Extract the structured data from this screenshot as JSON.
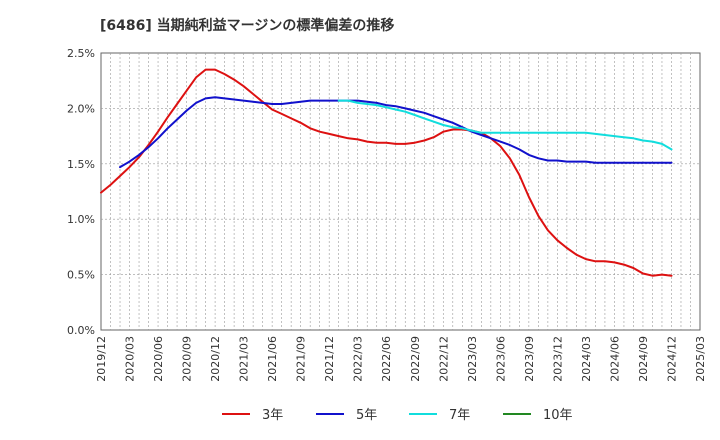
{
  "chart_data": {
    "type": "line",
    "title": "[6486]  当期純利益マージンの標準偏差の推移",
    "xlabel": "",
    "ylabel": "",
    "x_ticks": [
      "2019/12",
      "2020/03",
      "2020/06",
      "2020/09",
      "2020/12",
      "2021/03",
      "2021/06",
      "2021/09",
      "2021/12",
      "2022/03",
      "2022/06",
      "2022/09",
      "2022/12",
      "2023/03",
      "2023/06",
      "2023/09",
      "2023/12",
      "2024/03",
      "2024/06",
      "2024/09",
      "2024/12",
      "2025/03"
    ],
    "y_ticks": [
      "0.0%",
      "0.5%",
      "1.0%",
      "1.5%",
      "2.0%",
      "2.5%"
    ],
    "ylim": [
      0,
      2.5
    ],
    "grid": true,
    "legend_position": "bottom",
    "series": [
      {
        "name": "3年",
        "color": "#dd1111",
        "points": [
          [
            "2019/12",
            1.24
          ],
          [
            "2020/01",
            1.31
          ],
          [
            "2020/02",
            1.39
          ],
          [
            "2020/03",
            1.47
          ],
          [
            "2020/04",
            1.56
          ],
          [
            "2020/05",
            1.67
          ],
          [
            "2020/06",
            1.79
          ],
          [
            "2020/07",
            1.92
          ],
          [
            "2020/08",
            2.04
          ],
          [
            "2020/09",
            2.16
          ],
          [
            "2020/10",
            2.28
          ],
          [
            "2020/11",
            2.35
          ],
          [
            "2020/12",
            2.35
          ],
          [
            "2021/01",
            2.31
          ],
          [
            "2021/02",
            2.26
          ],
          [
            "2021/03",
            2.2
          ],
          [
            "2021/04",
            2.13
          ],
          [
            "2021/05",
            2.06
          ],
          [
            "2021/06",
            1.99
          ],
          [
            "2021/07",
            1.95
          ],
          [
            "2021/08",
            1.91
          ],
          [
            "2021/09",
            1.87
          ],
          [
            "2021/10",
            1.82
          ],
          [
            "2021/11",
            1.79
          ],
          [
            "2021/12",
            1.77
          ],
          [
            "2022/01",
            1.75
          ],
          [
            "2022/02",
            1.73
          ],
          [
            "2022/03",
            1.72
          ],
          [
            "2022/04",
            1.7
          ],
          [
            "2022/05",
            1.69
          ],
          [
            "2022/06",
            1.69
          ],
          [
            "2022/07",
            1.68
          ],
          [
            "2022/08",
            1.68
          ],
          [
            "2022/09",
            1.69
          ],
          [
            "2022/10",
            1.71
          ],
          [
            "2022/11",
            1.74
          ],
          [
            "2022/12",
            1.79
          ],
          [
            "2023/01",
            1.81
          ],
          [
            "2023/02",
            1.81
          ],
          [
            "2023/03",
            1.8
          ],
          [
            "2023/04",
            1.78
          ],
          [
            "2023/05",
            1.73
          ],
          [
            "2023/06",
            1.66
          ],
          [
            "2023/07",
            1.55
          ],
          [
            "2023/08",
            1.4
          ],
          [
            "2023/09",
            1.2
          ],
          [
            "2023/10",
            1.03
          ],
          [
            "2023/11",
            0.9
          ],
          [
            "2023/12",
            0.81
          ],
          [
            "2024/01",
            0.74
          ],
          [
            "2024/02",
            0.68
          ],
          [
            "2024/03",
            0.64
          ],
          [
            "2024/04",
            0.62
          ],
          [
            "2024/05",
            0.62
          ],
          [
            "2024/06",
            0.61
          ],
          [
            "2024/07",
            0.59
          ],
          [
            "2024/08",
            0.56
          ],
          [
            "2024/09",
            0.51
          ],
          [
            "2024/10",
            0.49
          ],
          [
            "2024/11",
            0.5
          ],
          [
            "2024/12",
            0.49
          ]
        ]
      },
      {
        "name": "5年",
        "color": "#1111cc",
        "points": [
          [
            "2020/02",
            1.47
          ],
          [
            "2020/03",
            1.52
          ],
          [
            "2020/04",
            1.58
          ],
          [
            "2020/05",
            1.65
          ],
          [
            "2020/06",
            1.73
          ],
          [
            "2020/07",
            1.82
          ],
          [
            "2020/08",
            1.9
          ],
          [
            "2020/09",
            1.98
          ],
          [
            "2020/10",
            2.05
          ],
          [
            "2020/11",
            2.09
          ],
          [
            "2020/12",
            2.1
          ],
          [
            "2021/01",
            2.09
          ],
          [
            "2021/02",
            2.08
          ],
          [
            "2021/03",
            2.07
          ],
          [
            "2021/04",
            2.06
          ],
          [
            "2021/05",
            2.05
          ],
          [
            "2021/06",
            2.04
          ],
          [
            "2021/07",
            2.04
          ],
          [
            "2021/08",
            2.05
          ],
          [
            "2021/09",
            2.06
          ],
          [
            "2021/10",
            2.07
          ],
          [
            "2021/11",
            2.07
          ],
          [
            "2021/12",
            2.07
          ],
          [
            "2022/01",
            2.07
          ],
          [
            "2022/02",
            2.07
          ],
          [
            "2022/03",
            2.07
          ],
          [
            "2022/04",
            2.06
          ],
          [
            "2022/05",
            2.05
          ],
          [
            "2022/06",
            2.03
          ],
          [
            "2022/07",
            2.02
          ],
          [
            "2022/08",
            2.0
          ],
          [
            "2022/09",
            1.98
          ],
          [
            "2022/10",
            1.96
          ],
          [
            "2022/11",
            1.93
          ],
          [
            "2022/12",
            1.9
          ],
          [
            "2023/01",
            1.87
          ],
          [
            "2023/02",
            1.83
          ],
          [
            "2023/03",
            1.79
          ],
          [
            "2023/04",
            1.76
          ],
          [
            "2023/05",
            1.73
          ],
          [
            "2023/06",
            1.7
          ],
          [
            "2023/07",
            1.67
          ],
          [
            "2023/08",
            1.63
          ],
          [
            "2023/09",
            1.58
          ],
          [
            "2023/10",
            1.55
          ],
          [
            "2023/11",
            1.53
          ],
          [
            "2023/12",
            1.53
          ],
          [
            "2024/01",
            1.52
          ],
          [
            "2024/02",
            1.52
          ],
          [
            "2024/03",
            1.52
          ],
          [
            "2024/04",
            1.51
          ],
          [
            "2024/05",
            1.51
          ],
          [
            "2024/06",
            1.51
          ],
          [
            "2024/07",
            1.51
          ],
          [
            "2024/08",
            1.51
          ],
          [
            "2024/09",
            1.51
          ],
          [
            "2024/10",
            1.51
          ],
          [
            "2024/11",
            1.51
          ],
          [
            "2024/12",
            1.51
          ]
        ]
      },
      {
        "name": "7年",
        "color": "#11dddd",
        "points": [
          [
            "2022/01",
            2.07
          ],
          [
            "2022/02",
            2.07
          ],
          [
            "2022/03",
            2.05
          ],
          [
            "2022/04",
            2.04
          ],
          [
            "2022/05",
            2.03
          ],
          [
            "2022/06",
            2.01
          ],
          [
            "2022/07",
            1.99
          ],
          [
            "2022/08",
            1.97
          ],
          [
            "2022/09",
            1.94
          ],
          [
            "2022/10",
            1.91
          ],
          [
            "2022/11",
            1.88
          ],
          [
            "2022/12",
            1.85
          ],
          [
            "2023/01",
            1.83
          ],
          [
            "2023/02",
            1.82
          ],
          [
            "2023/03",
            1.8
          ],
          [
            "2023/04",
            1.78
          ],
          [
            "2023/05",
            1.78
          ],
          [
            "2023/06",
            1.78
          ],
          [
            "2023/07",
            1.78
          ],
          [
            "2023/08",
            1.78
          ],
          [
            "2023/09",
            1.78
          ],
          [
            "2023/10",
            1.78
          ],
          [
            "2023/11",
            1.78
          ],
          [
            "2023/12",
            1.78
          ],
          [
            "2024/01",
            1.78
          ],
          [
            "2024/02",
            1.78
          ],
          [
            "2024/03",
            1.78
          ],
          [
            "2024/04",
            1.77
          ],
          [
            "2024/05",
            1.76
          ],
          [
            "2024/06",
            1.75
          ],
          [
            "2024/07",
            1.74
          ],
          [
            "2024/08",
            1.73
          ],
          [
            "2024/09",
            1.71
          ],
          [
            "2024/10",
            1.7
          ],
          [
            "2024/11",
            1.68
          ],
          [
            "2024/12",
            1.63
          ]
        ]
      },
      {
        "name": "10年",
        "color": "#228822",
        "points": []
      }
    ]
  }
}
